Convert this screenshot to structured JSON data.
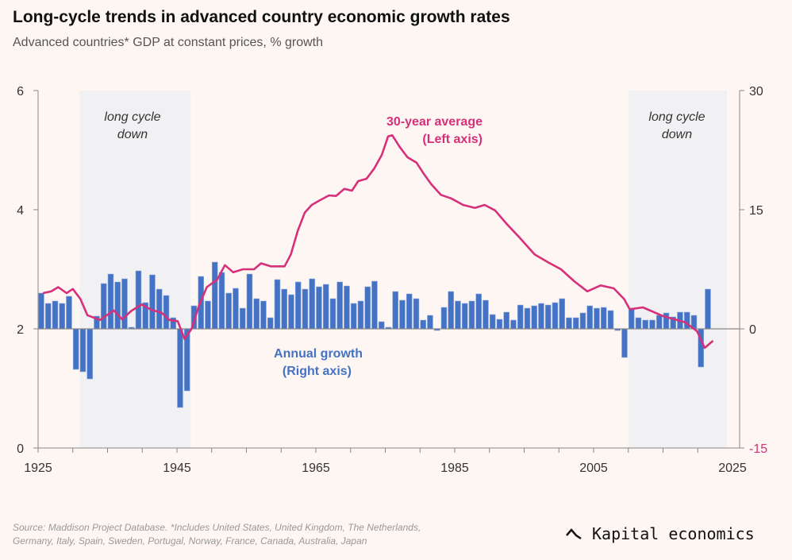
{
  "header": {
    "title": "Long-cycle trends in advanced country economic growth rates",
    "subtitle": "Advanced countries* GDP at constant prices, % growth"
  },
  "footer": {
    "source_line1": "Source: Maddison Project Database. *Includes United States, United Kingdom, The Netherlands,",
    "source_line2": "Germany, Italy, Spain, Sweden, Portugal, Norway, France, Canada, Australia, Japan",
    "logo_text": "Kapital economics"
  },
  "chart_data": {
    "type": "bar+line",
    "x_ticks": [
      "1925",
      "1945",
      "1965",
      "1985",
      "2005",
      "2025"
    ],
    "xlim": [
      1925,
      2025
    ],
    "left_axis": {
      "ticks": [
        "0",
        "2",
        "4",
        "6"
      ],
      "ylim": [
        0,
        6
      ]
    },
    "right_axis": {
      "ticks": [
        "-15",
        "0",
        "15",
        "30"
      ],
      "ylim": [
        -15,
        30
      ]
    },
    "shaded_regions": [
      {
        "label_line1": "long cycle",
        "label_line2": "down",
        "start": 1931,
        "end": 1947
      },
      {
        "label_line1": "long cycle",
        "label_line2": "down",
        "start": 2010,
        "end": 2024.2
      }
    ],
    "series": [
      {
        "name": "Annual growth",
        "label_line1": "Annual growth",
        "label_line2": "(Right axis)",
        "axis": "right",
        "kind": "bar",
        "color": "#4472c4",
        "start_year": 1925,
        "values": [
          4.5,
          3.2,
          3.5,
          3.2,
          4.1,
          -5.1,
          -5.4,
          -6.3,
          1.6,
          5.7,
          6.9,
          5.9,
          6.3,
          0.2,
          7.3,
          3.3,
          6.8,
          5.0,
          4.2,
          1.4,
          -9.9,
          -7.8,
          2.9,
          6.6,
          3.5,
          8.4,
          7.1,
          4.5,
          5.1,
          2.6,
          6.9,
          3.8,
          3.5,
          1.4,
          6.2,
          5.0,
          4.3,
          5.9,
          5.0,
          6.3,
          5.3,
          5.6,
          3.8,
          5.9,
          5.4,
          3.2,
          3.5,
          5.3,
          6.0,
          0.9,
          0.2,
          4.7,
          3.6,
          4.4,
          3.8,
          1.1,
          1.7,
          -0.2,
          2.7,
          4.7,
          3.5,
          3.2,
          3.5,
          4.4,
          3.6,
          1.8,
          1.2,
          2.1,
          1.1,
          3.0,
          2.6,
          2.9,
          3.2,
          3.0,
          3.3,
          3.8,
          1.4,
          1.4,
          2.0,
          2.9,
          2.6,
          2.7,
          2.3,
          -0.2,
          -3.6,
          2.6,
          1.4,
          1.1,
          1.1,
          1.7,
          2.0,
          1.5,
          2.1,
          2.1,
          1.7,
          -4.8,
          5.0
        ]
      },
      {
        "name": "30-year average",
        "label_line1": "30-year average",
        "label_line2": "(Left axis)",
        "axis": "left",
        "kind": "line",
        "color": "#d6307a",
        "x": [
          1925.3,
          1926.5,
          1927.5,
          1928.7,
          1929.6,
          1930.7,
          1931.7,
          1933.5,
          1935.5,
          1936.7,
          1938,
          1939.5,
          1940.9,
          1942.4,
          1943.5,
          1944.7,
          1945.7,
          1946.7,
          1947.8,
          1948.9,
          1950.4,
          1951.5,
          1952.7,
          1954.1,
          1955.7,
          1956.7,
          1958.1,
          1959,
          1960.1,
          1961,
          1962,
          1963,
          1964,
          1965.2,
          1966.5,
          1967.5,
          1968.7,
          1969.8,
          1970.7,
          1971.9,
          1973,
          1974.1,
          1975,
          1975.6,
          1976.7,
          1977.8,
          1979.1,
          1980.1,
          1981.2,
          1982.6,
          1984.1,
          1985.8,
          1987.5,
          1988.9,
          1990.4,
          1992.1,
          1993.8,
          1996.1,
          1998,
          1999.9,
          2001.8,
          2003.7,
          2005.6,
          2007.5,
          2009,
          2009.8,
          2011.7,
          2014.7,
          2017.8,
          2019.5,
          2020.6,
          2021.8
        ],
        "y": [
          2.6,
          2.63,
          2.7,
          2.6,
          2.67,
          2.5,
          2.23,
          2.15,
          2.31,
          2.16,
          2.3,
          2.41,
          2.32,
          2.27,
          2.15,
          2.13,
          1.83,
          2.0,
          2.4,
          2.7,
          2.83,
          3.07,
          2.95,
          3.0,
          3.0,
          3.1,
          3.05,
          3.05,
          3.05,
          3.25,
          3.65,
          3.95,
          4.08,
          4.16,
          4.24,
          4.23,
          4.35,
          4.32,
          4.48,
          4.52,
          4.69,
          4.92,
          5.23,
          5.25,
          5.05,
          4.88,
          4.79,
          4.61,
          4.43,
          4.25,
          4.19,
          4.08,
          4.03,
          4.08,
          3.99,
          3.76,
          3.55,
          3.25,
          3.12,
          3.0,
          2.8,
          2.63,
          2.73,
          2.68,
          2.5,
          2.33,
          2.36,
          2.21,
          2.11,
          1.96,
          1.68,
          1.8
        ]
      }
    ]
  }
}
